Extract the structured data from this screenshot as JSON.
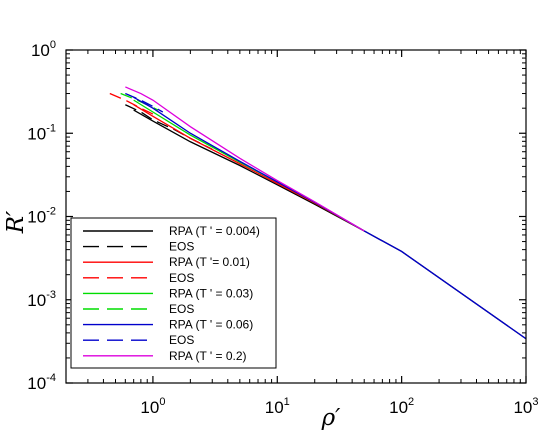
{
  "chart_data": {
    "type": "line",
    "xlabel": "ρ′",
    "ylabel": "R′",
    "xscale": "log",
    "yscale": "log",
    "xlim": [
      0.2,
      1000
    ],
    "ylim": [
      0.0001,
      1
    ],
    "x_ticks": [
      {
        "base": "10",
        "exp": "0",
        "value": 1
      },
      {
        "base": "10",
        "exp": "1",
        "value": 10
      },
      {
        "base": "10",
        "exp": "2",
        "value": 100
      },
      {
        "base": "10",
        "exp": "3",
        "value": 1000
      }
    ],
    "y_ticks": [
      {
        "base": "10",
        "exp": "0",
        "value": 1
      },
      {
        "base": "10",
        "exp": "-1",
        "value": 0.1
      },
      {
        "base": "10",
        "exp": "-2",
        "value": 0.01
      },
      {
        "base": "10",
        "exp": "-3",
        "value": 0.001
      },
      {
        "base": "10",
        "exp": "-4",
        "value": 0.0001
      }
    ],
    "grid": false,
    "legend_position": "bottom-left",
    "series": [
      {
        "name": "RPA (T ' = 0.004)",
        "color": "#000000",
        "dash": "solid",
        "x": [
          0.7,
          1,
          2,
          5,
          10,
          20,
          50,
          100,
          1000
        ],
        "y": [
          0.19,
          0.14,
          0.079,
          0.041,
          0.024,
          0.014,
          0.0067,
          0.0038,
          0.00034
        ]
      },
      {
        "name": "EOS",
        "color": "#000000",
        "dash": "dashed",
        "x": [
          0.6,
          0.8,
          1,
          1.5,
          2,
          3
        ],
        "y": [
          0.22,
          0.18,
          0.145,
          0.11,
          0.087,
          0.064
        ]
      },
      {
        "name": "RPA (T '= 0.01)",
        "color": "#ff0000",
        "dash": "solid",
        "x": [
          0.7,
          1,
          2,
          5,
          10,
          20,
          50
        ],
        "y": [
          0.22,
          0.16,
          0.087,
          0.043,
          0.025,
          0.0145,
          0.0067
        ]
      },
      {
        "name": "EOS",
        "color": "#ff0000",
        "dash": "dashed",
        "x": [
          0.45,
          0.6,
          0.8,
          1
        ],
        "y": [
          0.3,
          0.25,
          0.2,
          0.17
        ]
      },
      {
        "name": "RPA (T ' = 0.03)",
        "color": "#00dd00",
        "dash": "solid",
        "x": [
          0.7,
          1,
          2,
          5,
          10,
          20,
          50
        ],
        "y": [
          0.25,
          0.18,
          0.095,
          0.045,
          0.026,
          0.0148,
          0.0067
        ]
      },
      {
        "name": "EOS",
        "color": "#00dd00",
        "dash": "dashed",
        "x": [
          0.55,
          0.7,
          0.9,
          1.1
        ],
        "y": [
          0.3,
          0.26,
          0.22,
          0.19
        ]
      },
      {
        "name": "RPA (T ' = 0.06)",
        "color": "#0000cc",
        "dash": "solid",
        "x": [
          0.7,
          1,
          2,
          5,
          10,
          20,
          50,
          100,
          1000
        ],
        "y": [
          0.27,
          0.2,
          0.1,
          0.046,
          0.026,
          0.0148,
          0.0067,
          0.0038,
          0.00034
        ]
      },
      {
        "name": "EOS",
        "color": "#0000cc",
        "dash": "dashed",
        "x": [
          0.6,
          0.8,
          1,
          1.2
        ],
        "y": [
          0.3,
          0.25,
          0.21,
          0.18
        ]
      },
      {
        "name": "RPA (T ' = 0.2)",
        "color": "#dd00dd",
        "dash": "solid",
        "x": [
          0.6,
          0.8,
          1,
          2,
          5,
          10,
          20,
          50
        ],
        "y": [
          0.36,
          0.3,
          0.25,
          0.12,
          0.05,
          0.027,
          0.015,
          0.0067
        ]
      }
    ]
  }
}
